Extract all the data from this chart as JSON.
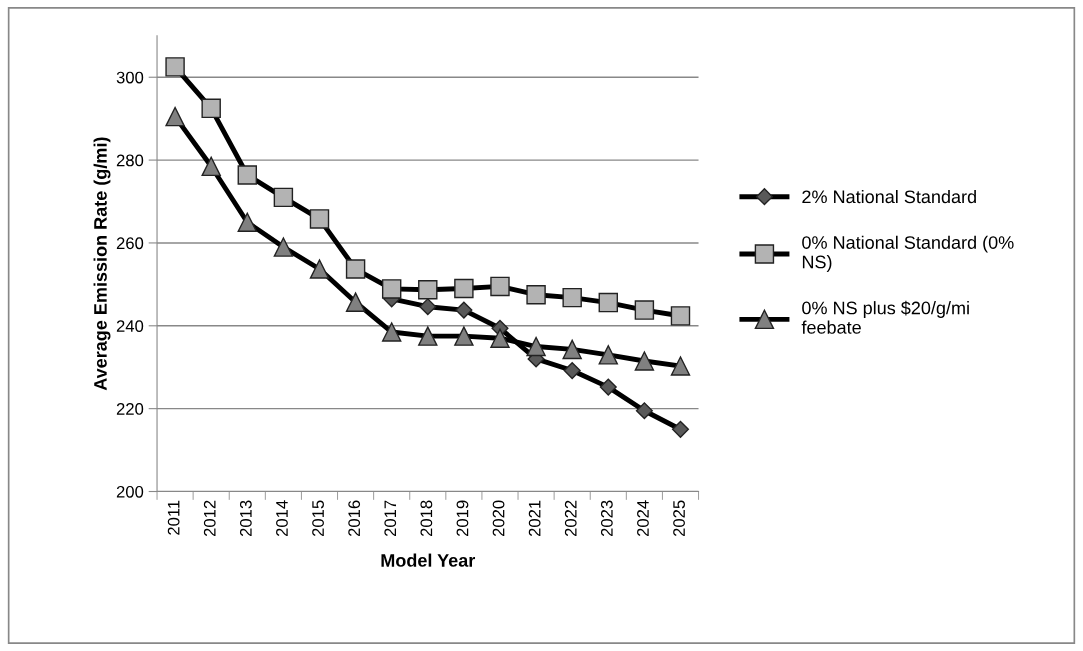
{
  "chart_data": {
    "type": "line",
    "xlabel": "Model Year",
    "ylabel": "Average Emission Rate (g/mi)",
    "categories": [
      "2011",
      "2012",
      "2013",
      "2014",
      "2015",
      "2016",
      "2017",
      "2018",
      "2019",
      "2020",
      "2021",
      "2022",
      "2023",
      "2024",
      "2025"
    ],
    "series": [
      {
        "name": "2% National Standard",
        "color": "#595959",
        "marker": "diamond",
        "values": [
          null,
          null,
          null,
          null,
          null,
          null,
          246.5,
          244.6,
          243.8,
          239.4,
          232,
          229.2,
          225.2,
          219.5,
          215
        ]
      },
      {
        "name": "0% National Standard (0% NS)",
        "color": "#b3b3b3",
        "marker": "square",
        "values": [
          302.5,
          292.5,
          276.4,
          271,
          265.8,
          253.7,
          248.9,
          248.7,
          249,
          249.5,
          247.5,
          246.8,
          245.6,
          243.8,
          242.4
        ]
      },
      {
        "name": "0% NS plus $20/g/mi feebate",
        "color": "#808080",
        "marker": "triangle",
        "values": [
          290.5,
          278.5,
          265,
          259,
          253.7,
          245.7,
          238.5,
          237.5,
          237.5,
          237,
          235,
          234.3,
          233,
          231.5,
          230.3
        ]
      }
    ],
    "ylim": [
      200,
      310
    ],
    "yticks": [
      200,
      220,
      240,
      260,
      280,
      300
    ],
    "grid": "y",
    "legend": "right"
  }
}
